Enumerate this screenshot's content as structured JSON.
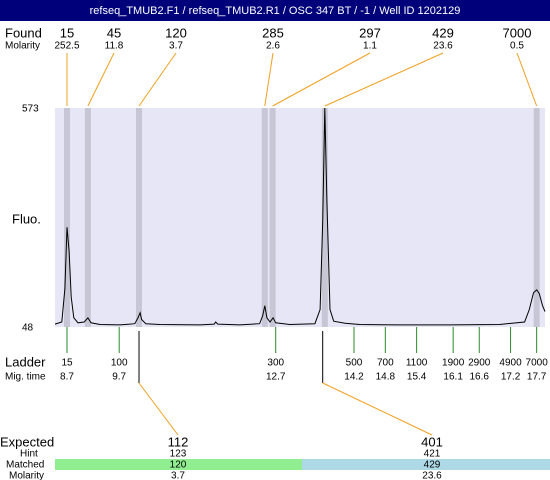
{
  "title": "refseq_TMUB2.F1 / refseq_TMUB2.R1 / OSC 347 BT / -1 / Well ID 1202129",
  "found": {
    "label": "Found",
    "sublabel": "Molarity",
    "sizes": [
      15,
      45,
      120,
      285,
      297,
      429,
      7000
    ],
    "molarity": [
      252.5,
      11.8,
      3.7,
      2.6,
      1.1,
      23.6,
      0.5
    ],
    "peak_times": [
      8.7,
      9.1,
      10.08,
      12.49,
      12.64,
      13.64,
      17.7
    ]
  },
  "chart_data": {
    "type": "electropherogram",
    "ylabel": "Fluo.",
    "ylim": [
      48,
      573
    ],
    "yticks": [
      48,
      573
    ],
    "xlim": [
      8.47,
      17.86
    ],
    "x": [
      8.47,
      8.6,
      8.66,
      8.7,
      8.74,
      8.78,
      8.83,
      8.91,
      9.03,
      9.1,
      9.16,
      9.33,
      9.72,
      10.0,
      10.06,
      10.1,
      10.13,
      10.21,
      10.48,
      11.25,
      11.52,
      11.55,
      11.59,
      12.01,
      12.39,
      12.45,
      12.49,
      12.53,
      12.59,
      12.65,
      12.7,
      12.97,
      13.45,
      13.55,
      13.6,
      13.64,
      13.68,
      13.74,
      13.81,
      14.03,
      14.31,
      15.08,
      16.04,
      16.99,
      17.47,
      17.56,
      17.64,
      17.7,
      17.75,
      17.81,
      17.86
    ],
    "values": [
      55,
      60,
      140,
      287,
      230,
      120,
      70,
      58,
      60,
      70,
      58,
      54,
      53,
      56,
      70,
      82,
      66,
      56,
      54,
      53,
      55,
      60,
      55,
      53,
      56,
      75,
      99,
      70,
      60,
      70,
      58,
      54,
      56,
      90,
      300,
      573,
      350,
      90,
      62,
      57,
      54,
      53,
      53,
      54,
      60,
      90,
      130,
      137,
      128,
      100,
      85
    ]
  },
  "ladder": {
    "label": "Ladder",
    "sublabel": "Mig. time",
    "sizes": [
      15,
      100,
      300,
      500,
      700,
      1100,
      1900,
      2900,
      4900,
      7000
    ],
    "times": [
      8.7,
      9.7,
      12.7,
      14.2,
      14.8,
      15.4,
      16.1,
      16.6,
      17.2,
      17.7
    ]
  },
  "expected": {
    "label": "Expected",
    "hint_label": "Hint",
    "matched_label": "Matched",
    "molarity_label": "Molarity",
    "columns": [
      {
        "expected": 112,
        "hint": 123,
        "matched": 120,
        "molarity": 3.7,
        "time": 10.08
      },
      {
        "expected": 401,
        "hint": 421,
        "matched": 429,
        "molarity": 23.6,
        "time": 13.6
      }
    ]
  }
}
